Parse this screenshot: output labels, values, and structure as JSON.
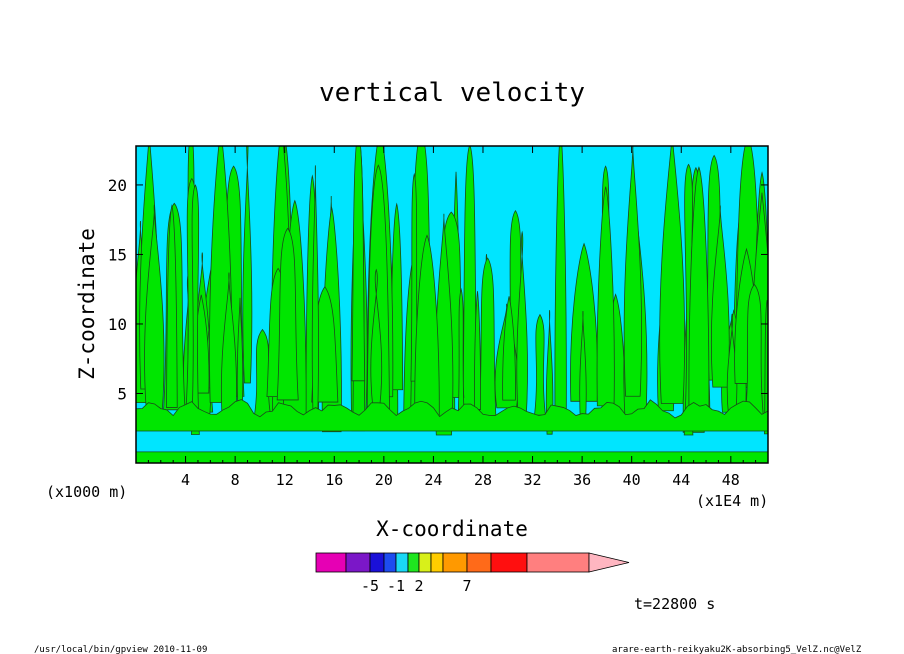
{
  "chart_data": {
    "type": "heatmap",
    "title": "vertical velocity",
    "xlabel": "X-coordinate",
    "ylabel": "Z-coordinate",
    "x_unit_left": "(x1000 m)",
    "x_unit_right": "(x1E4 m)",
    "xlim": [
      0,
      51
    ],
    "ylim": [
      0,
      22.8
    ],
    "xticks": [
      4,
      8,
      12,
      16,
      20,
      24,
      28,
      32,
      36,
      40,
      44,
      48
    ],
    "yticks": [
      5,
      10,
      15,
      20
    ],
    "time_label": "t=22800 s",
    "colorbar": {
      "colors": [
        "#e600b4",
        "#7b17c8",
        "#1a10d8",
        "#1d4cf0",
        "#1ad8f5",
        "#1fe61f",
        "#d8f01a",
        "#ffcd00",
        "#ff9900",
        "#ff6a19",
        "#ff0f0f",
        "#ff7f7f",
        "#ffb6c1"
      ],
      "tick_labels": [
        {
          "label": "-5",
          "boundary": 2
        },
        {
          "label": "-1",
          "boundary": 4
        },
        {
          "label": "2",
          "boundary": 6
        },
        {
          "label": "7",
          "boundary": 9
        }
      ],
      "field_colors": {
        "background": "#00e5ff",
        "updraft": "#00e600",
        "strong": "#22c522"
      }
    }
  },
  "footer": {
    "left": "/usr/local/bin/gpview  2010-11-09",
    "right": "arare-earth-reikyaku2K-absorbing5_VelZ.nc@VelZ"
  }
}
